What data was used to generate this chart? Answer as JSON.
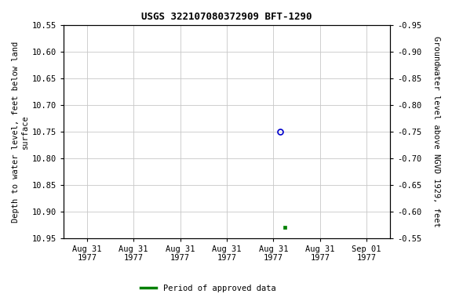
{
  "title": "USGS 322107080372909 BFT-1290",
  "ylabel_left": "Depth to water level, feet below land\nsurface",
  "ylabel_right": "Groundwater level above NGVD 1929, feet",
  "ylim_left": [
    10.55,
    10.95
  ],
  "ylim_right": [
    -0.55,
    -0.95
  ],
  "yticks_left": [
    10.55,
    10.6,
    10.65,
    10.7,
    10.75,
    10.8,
    10.85,
    10.9,
    10.95
  ],
  "yticks_right": [
    -0.55,
    -0.6,
    -0.65,
    -0.7,
    -0.75,
    -0.8,
    -0.85,
    "-0.90",
    -0.95
  ],
  "ytick_labels_left": [
    "10.55",
    "10.60",
    "10.65",
    "10.70",
    "10.75",
    "10.80",
    "10.85",
    "10.90",
    "10.95"
  ],
  "ytick_labels_right": [
    "-0.55",
    "-0.60",
    "-0.65",
    "-0.70",
    "-0.75",
    "-0.80",
    "-0.85",
    "-0.90",
    "-0.95"
  ],
  "xtick_labels": [
    "Aug 31\n1977",
    "Aug 31\n1977",
    "Aug 31\n1977",
    "Aug 31\n1977",
    "Aug 31\n1977",
    "Aug 31\n1977",
    "Sep 01\n1977"
  ],
  "xtick_positions": [
    0,
    1,
    2,
    3,
    4,
    5,
    6
  ],
  "xlim": [
    -0.5,
    6.5
  ],
  "blue_point_x": 4.15,
  "blue_point_y": 10.75,
  "green_point_x": 4.25,
  "green_point_y": 10.93,
  "bg_color": "#ffffff",
  "grid_color": "#c8c8c8",
  "blue_marker_color": "#0000cc",
  "green_marker_color": "#008000",
  "legend_label": "Period of approved data",
  "title_fontsize": 9,
  "label_fontsize": 7.5,
  "tick_fontsize": 7.5
}
